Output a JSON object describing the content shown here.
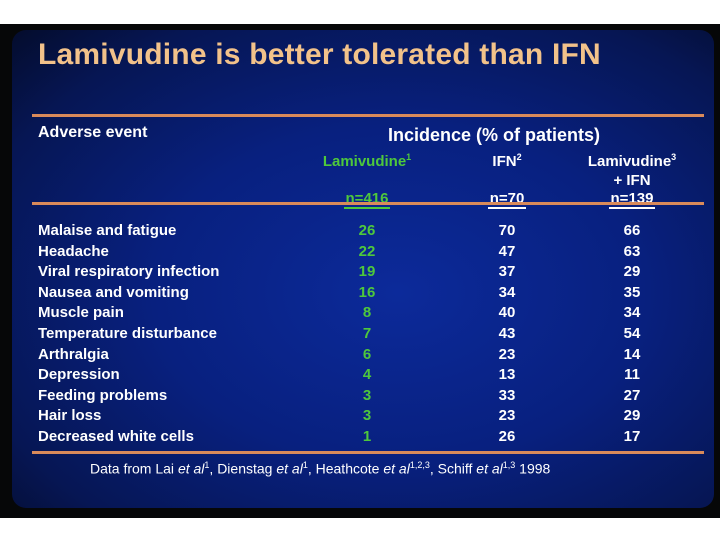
{
  "slide": {
    "title": "Lamivudine is better tolerated than IFN",
    "header_adverse": "Adverse event",
    "header_incidence": "Incidence (% of patients)",
    "columns": [
      {
        "name": "Lamivudine",
        "sup": "1",
        "name2": "",
        "n": "n=416",
        "color": "#4ec83c"
      },
      {
        "name": "IFN",
        "sup": "2",
        "name2": "",
        "n": "n=70",
        "color": "#ffffff"
      },
      {
        "name": "Lamivudine",
        "sup": "3",
        "name2": "+ IFN",
        "n": "n=139",
        "color": "#ffffff"
      }
    ],
    "rows": [
      {
        "event": "Malaise and fatigue",
        "v": [
          "26",
          "70",
          "66"
        ]
      },
      {
        "event": "Headache",
        "v": [
          "22",
          "47",
          "63"
        ]
      },
      {
        "event": "Viral respiratory infection",
        "v": [
          "19",
          "37",
          "29"
        ]
      },
      {
        "event": "Nausea and vomiting",
        "v": [
          "16",
          "34",
          "35"
        ]
      },
      {
        "event": "Muscle pain",
        "v": [
          "8",
          "40",
          "34"
        ]
      },
      {
        "event": "Temperature disturbance",
        "v": [
          "7",
          "43",
          "54"
        ]
      },
      {
        "event": "Arthralgia",
        "v": [
          "6",
          "23",
          "14"
        ]
      },
      {
        "event": "Depression",
        "v": [
          "4",
          "13",
          "11"
        ]
      },
      {
        "event": "Feeding problems",
        "v": [
          "3",
          "33",
          "27"
        ]
      },
      {
        "event": "Hair loss",
        "v": [
          "3",
          "23",
          "29"
        ]
      },
      {
        "event": "Decreased white cells",
        "v": [
          "1",
          "26",
          "17"
        ]
      }
    ],
    "footnote": {
      "prefix": "Data from Lai ",
      "etal1": "et al",
      "sup1": "1",
      "mid1": ", Dienstag ",
      "etal2": "et al",
      "sup2": "1",
      "mid2": ", Heathcote ",
      "etal3": "et al",
      "sup3": "1,2,3",
      "mid3": ", Schiff ",
      "etal4": "et al",
      "sup4": "1,3",
      "year": " 1998"
    }
  }
}
